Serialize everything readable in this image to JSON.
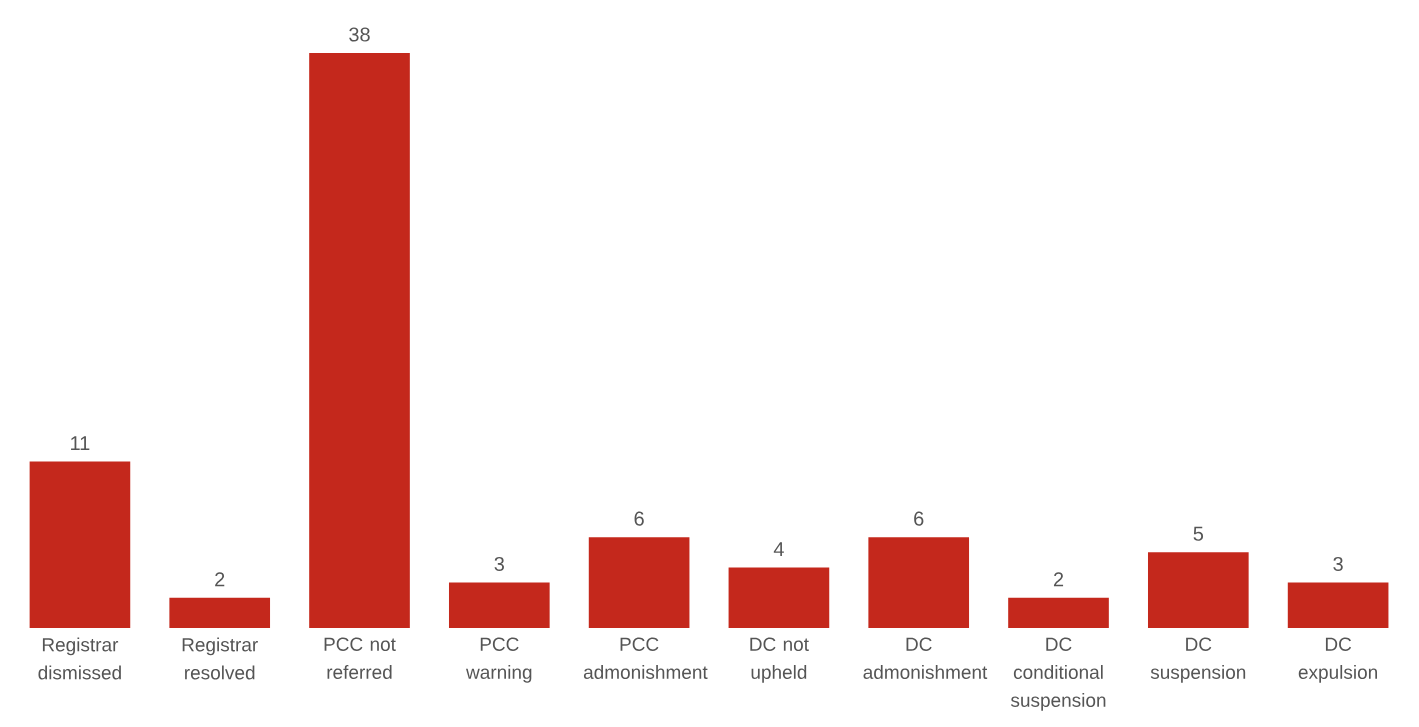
{
  "chart_data": {
    "type": "bar",
    "categories": [
      "Registrar dismissed",
      "Registrar resolved",
      "PCC not referred",
      "PCC warning",
      "PCC admonishment",
      "DC not upheld",
      "DC admonishment",
      "DC conditional suspension",
      "DC suspension",
      "DC expulsion"
    ],
    "values": [
      11,
      2,
      38,
      3,
      6,
      4,
      6,
      2,
      5,
      3
    ],
    "color": "#c4281c",
    "data_labels": true
  }
}
